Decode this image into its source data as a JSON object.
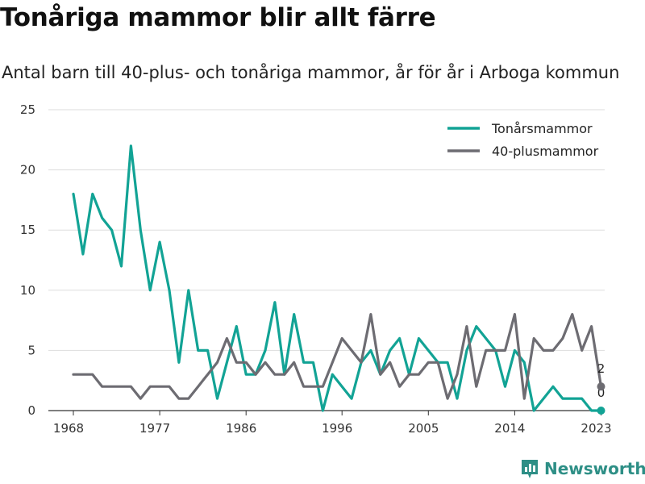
{
  "title": "Tonåriga mammor blir allt färre",
  "subtitle": "Antal barn till 40-plus- och tonåriga mammor, år för år i Arboga kommun",
  "brand": "Newsworthy",
  "chart_data": {
    "type": "line",
    "x_start": 1968,
    "x_end": 2021,
    "x_ticks": [
      1968,
      1977,
      1986,
      1996,
      2005,
      2014,
      2023
    ],
    "x_tick_labels": [
      "1968",
      "1977",
      "1986",
      "1996",
      "2005",
      "2014",
      "2023"
    ],
    "ylim": [
      0,
      25
    ],
    "y_ticks": [
      0,
      5,
      10,
      15,
      20,
      25
    ],
    "y_tick_labels": [
      "0",
      "5",
      "10",
      "15",
      "20",
      "25"
    ],
    "grid": true,
    "legend_position": "top-right",
    "series": [
      {
        "name": "Tonårsmammor",
        "color": "#12a395",
        "end_label": "0",
        "values": [
          18,
          13,
          18,
          16,
          15,
          12,
          22,
          15,
          10,
          14,
          10,
          4,
          10,
          5,
          5,
          1,
          4,
          7,
          3,
          3,
          5,
          9,
          3,
          8,
          4,
          4,
          0,
          3,
          2,
          1,
          4,
          5,
          3,
          5,
          6,
          3,
          6,
          5,
          4,
          4,
          1,
          5,
          7,
          6,
          5,
          2,
          5,
          4,
          0,
          1,
          2,
          1,
          1,
          1,
          0,
          0
        ]
      },
      {
        "name": "40-plusmammor",
        "color": "#6d6c72",
        "end_label": "2",
        "values": [
          3,
          3,
          3,
          2,
          2,
          2,
          2,
          1,
          2,
          2,
          2,
          1,
          1,
          2,
          3,
          4,
          6,
          4,
          4,
          3,
          4,
          3,
          3,
          4,
          2,
          2,
          2,
          4,
          6,
          5,
          4,
          8,
          3,
          4,
          2,
          3,
          3,
          4,
          4,
          1,
          3,
          7,
          2,
          5,
          5,
          5,
          8,
          1,
          6,
          5,
          5,
          6,
          8,
          5,
          7,
          2
        ]
      }
    ]
  }
}
